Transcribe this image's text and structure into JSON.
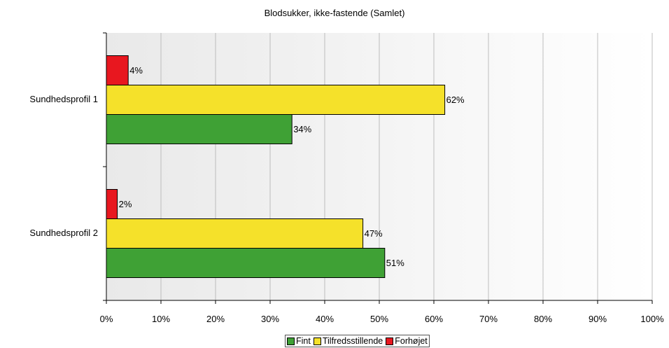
{
  "chart_data": {
    "type": "bar",
    "orientation": "horizontal",
    "title": "Blodsukker, ikke-fastende (Samlet)",
    "categories": [
      "Sundhedsprofil 1",
      "Sundhedsprofil 2"
    ],
    "series": [
      {
        "name": "Forhøjet",
        "color": "#e8171f",
        "values": [
          4,
          2
        ],
        "labels": [
          "4%",
          "2%"
        ]
      },
      {
        "name": "Tilfredsstillende",
        "color": "#f5e12a",
        "values": [
          62,
          47
        ],
        "labels": [
          "62%",
          "47%"
        ]
      },
      {
        "name": "Fint",
        "color": "#3fa135",
        "values": [
          34,
          51
        ],
        "labels": [
          "34%",
          "51%"
        ]
      }
    ],
    "xlim": [
      0,
      100
    ],
    "xticks": [
      "0%",
      "10%",
      "20%",
      "30%",
      "40%",
      "50%",
      "60%",
      "70%",
      "80%",
      "90%",
      "100%"
    ],
    "grid": true,
    "legend_position": "bottom",
    "legend_order": [
      "Fint",
      "Tilfredsstillende",
      "Forhøjet"
    ]
  }
}
